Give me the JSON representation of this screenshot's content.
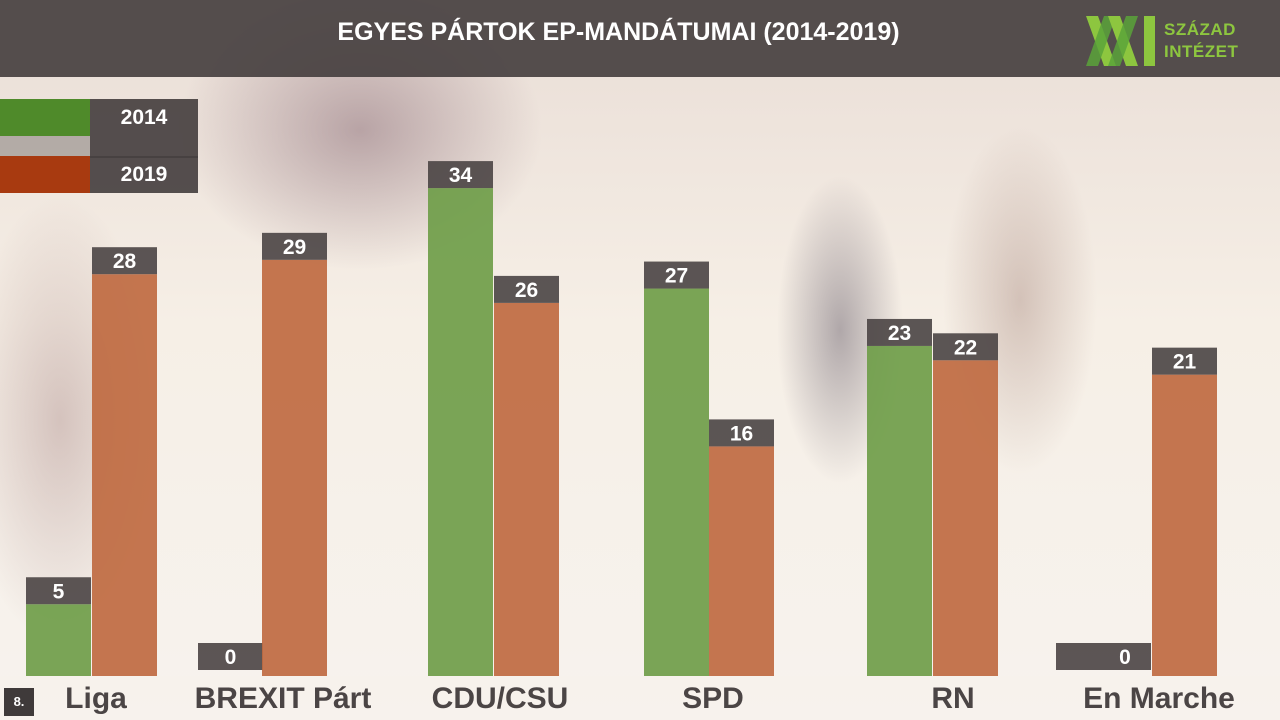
{
  "slide": {
    "title": "EGYES PÁRTOK EP-MANDÁTUMAI (2014-2019)",
    "logo_line1": "SZÁZAD",
    "logo_line2": "INTÉZET",
    "page_number": "8."
  },
  "colors": {
    "series_2014": "#6f9d49",
    "series_2019": "#bf6a41",
    "label_box": "#4a4444",
    "header": "#464040"
  },
  "chart_data": {
    "type": "bar",
    "title": "EGYES PÁRTOK EP-MANDÁTUMAI (2014-2019)",
    "categories": [
      "Liga",
      "BREXIT Párt",
      "CDU/CSU",
      "SPD",
      "RN",
      "En Marche"
    ],
    "series": [
      {
        "name": "2014",
        "values": [
          5,
          0,
          34,
          27,
          23,
          0
        ]
      },
      {
        "name": "2019",
        "values": [
          28,
          29,
          26,
          16,
          22,
          21
        ]
      }
    ],
    "ylim": [
      0,
      40
    ],
    "grid": false,
    "legend": "top-left"
  }
}
